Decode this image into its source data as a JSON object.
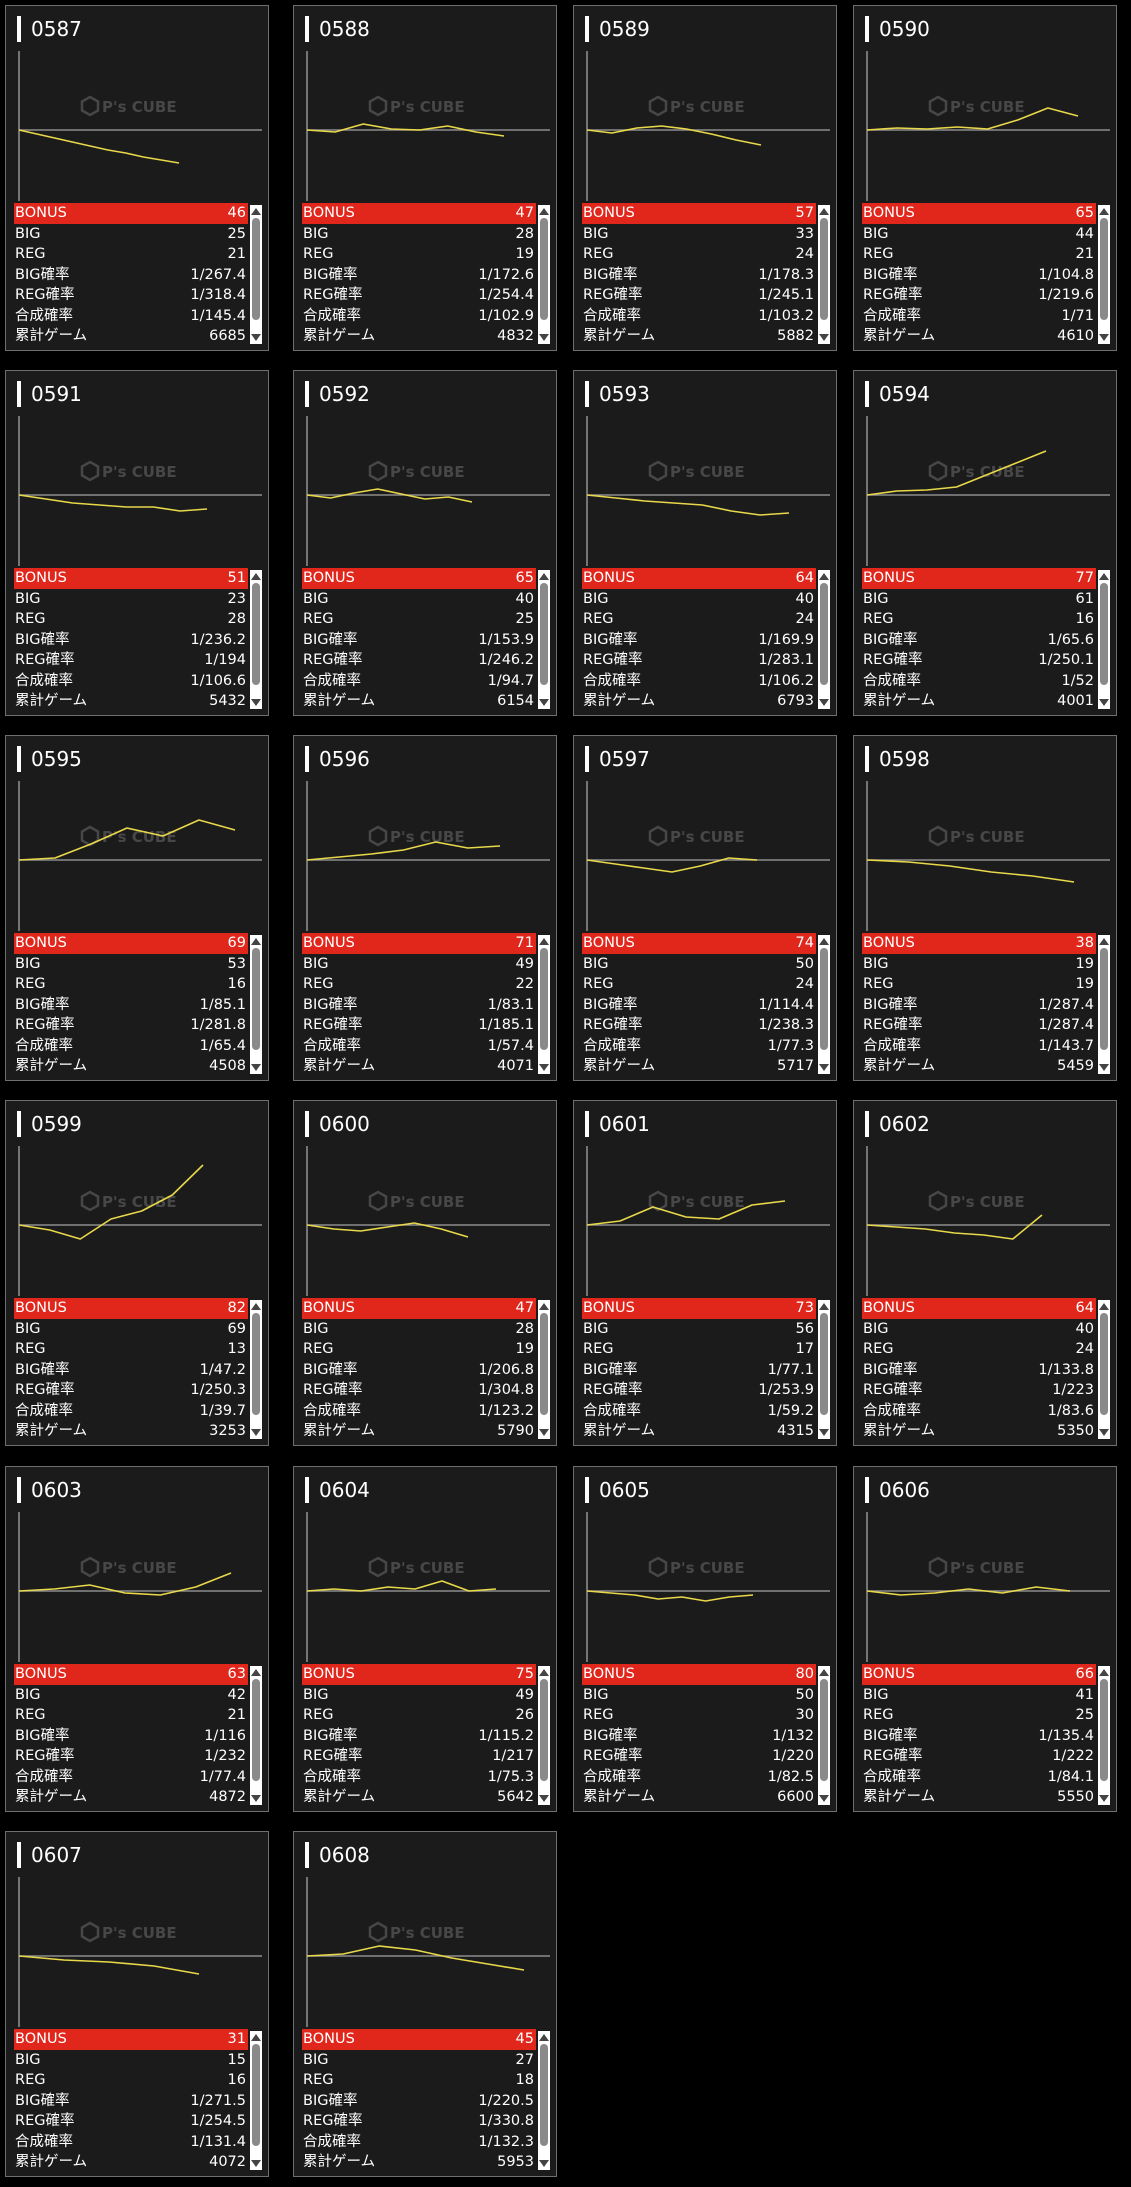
{
  "watermark": "P's CUBE",
  "labels": {
    "bonus": "BONUS",
    "big": "BIG",
    "reg": "REG",
    "big_rate": "BIG確率",
    "reg_rate": "REG確率",
    "total_rate": "合成確率",
    "games": "累計ゲーム"
  },
  "colors": {
    "bonus_bar": "#e1261c",
    "line": "#e8d84a",
    "card_bg": "#1b1b1b"
  },
  "machines": [
    {
      "id": "0587",
      "bonus": "46",
      "big": "25",
      "reg": "21",
      "big_rate": "1/267.4",
      "reg_rate": "1/318.4",
      "total_rate": "1/145.4",
      "games": "6685",
      "trend": [
        0,
        -4,
        -8,
        -12,
        -16,
        -20,
        -23,
        -27,
        -30,
        -33
      ]
    },
    {
      "id": "0588",
      "bonus": "47",
      "big": "28",
      "reg": "19",
      "big_rate": "1/172.6",
      "reg_rate": "1/254.4",
      "total_rate": "1/102.9",
      "games": "4832",
      "trend": [
        0,
        -2,
        6,
        1,
        0,
        4,
        -2,
        -6
      ]
    },
    {
      "id": "0589",
      "bonus": "57",
      "big": "33",
      "reg": "24",
      "big_rate": "1/178.3",
      "reg_rate": "1/245.1",
      "total_rate": "1/103.2",
      "games": "5882",
      "trend": [
        0,
        -3,
        2,
        4,
        1,
        -4,
        -10,
        -15
      ]
    },
    {
      "id": "0590",
      "bonus": "65",
      "big": "44",
      "reg": "21",
      "big_rate": "1/104.8",
      "reg_rate": "1/219.6",
      "total_rate": "1/71",
      "games": "4610",
      "trend": [
        0,
        2,
        1,
        3,
        1,
        10,
        22,
        14
      ]
    },
    {
      "id": "0591",
      "bonus": "51",
      "big": "23",
      "reg": "28",
      "big_rate": "1/236.2",
      "reg_rate": "1/194",
      "total_rate": "1/106.6",
      "games": "5432",
      "trend": [
        0,
        -4,
        -8,
        -10,
        -12,
        -12,
        -16,
        -14
      ]
    },
    {
      "id": "0592",
      "bonus": "65",
      "big": "40",
      "reg": "25",
      "big_rate": "1/153.9",
      "reg_rate": "1/246.2",
      "total_rate": "1/94.7",
      "games": "6154",
      "trend": [
        0,
        -3,
        2,
        6,
        1,
        -4,
        -2,
        -7
      ]
    },
    {
      "id": "0593",
      "bonus": "64",
      "big": "40",
      "reg": "24",
      "big_rate": "1/169.9",
      "reg_rate": "1/283.1",
      "total_rate": "1/106.2",
      "games": "6793",
      "trend": [
        0,
        -3,
        -6,
        -8,
        -10,
        -16,
        -20,
        -18
      ]
    },
    {
      "id": "0594",
      "bonus": "77",
      "big": "61",
      "reg": "16",
      "big_rate": "1/65.6",
      "reg_rate": "1/250.1",
      "total_rate": "1/52",
      "games": "4001",
      "trend": [
        0,
        4,
        5,
        8,
        20,
        32,
        44
      ]
    },
    {
      "id": "0595",
      "bonus": "69",
      "big": "53",
      "reg": "16",
      "big_rate": "1/85.1",
      "reg_rate": "1/281.8",
      "total_rate": "1/65.4",
      "games": "4508",
      "trend": [
        0,
        2,
        16,
        32,
        24,
        40,
        30
      ]
    },
    {
      "id": "0596",
      "bonus": "71",
      "big": "49",
      "reg": "22",
      "big_rate": "1/83.1",
      "reg_rate": "1/185.1",
      "total_rate": "1/57.4",
      "games": "4071",
      "trend": [
        0,
        3,
        6,
        10,
        18,
        12,
        14
      ]
    },
    {
      "id": "0597",
      "bonus": "74",
      "big": "50",
      "reg": "24",
      "big_rate": "1/114.4",
      "reg_rate": "1/238.3",
      "total_rate": "1/77.3",
      "games": "5717",
      "trend": [
        0,
        -4,
        -8,
        -12,
        -6,
        2,
        0
      ]
    },
    {
      "id": "0598",
      "bonus": "38",
      "big": "19",
      "reg": "19",
      "big_rate": "1/287.4",
      "reg_rate": "1/287.4",
      "total_rate": "1/143.7",
      "games": "5459",
      "trend": [
        0,
        -2,
        -6,
        -12,
        -16,
        -22
      ]
    },
    {
      "id": "0599",
      "bonus": "82",
      "big": "69",
      "reg": "13",
      "big_rate": "1/47.2",
      "reg_rate": "1/250.3",
      "total_rate": "1/39.7",
      "games": "3253",
      "trend": [
        0,
        -5,
        -14,
        6,
        14,
        30,
        60
      ]
    },
    {
      "id": "0600",
      "bonus": "47",
      "big": "28",
      "reg": "19",
      "big_rate": "1/206.8",
      "reg_rate": "1/304.8",
      "total_rate": "1/123.2",
      "games": "5790",
      "trend": [
        0,
        -4,
        -6,
        -2,
        2,
        -4,
        -12
      ]
    },
    {
      "id": "0601",
      "bonus": "73",
      "big": "56",
      "reg": "17",
      "big_rate": "1/77.1",
      "reg_rate": "1/253.9",
      "total_rate": "1/59.2",
      "games": "4315",
      "trend": [
        0,
        4,
        18,
        8,
        6,
        20,
        24
      ]
    },
    {
      "id": "0602",
      "bonus": "64",
      "big": "40",
      "reg": "24",
      "big_rate": "1/133.8",
      "reg_rate": "1/223",
      "total_rate": "1/83.6",
      "games": "5350",
      "trend": [
        0,
        -2,
        -4,
        -8,
        -10,
        -14,
        10
      ]
    },
    {
      "id": "0603",
      "bonus": "63",
      "big": "42",
      "reg": "21",
      "big_rate": "1/116",
      "reg_rate": "1/232",
      "total_rate": "1/77.4",
      "games": "4872",
      "trend": [
        0,
        2,
        6,
        -2,
        -4,
        4,
        18
      ]
    },
    {
      "id": "0604",
      "bonus": "75",
      "big": "49",
      "reg": "26",
      "big_rate": "1/115.2",
      "reg_rate": "1/217",
      "total_rate": "1/75.3",
      "games": "5642",
      "trend": [
        0,
        2,
        0,
        4,
        2,
        10,
        0,
        2
      ]
    },
    {
      "id": "0605",
      "bonus": "80",
      "big": "50",
      "reg": "30",
      "big_rate": "1/132",
      "reg_rate": "1/220",
      "total_rate": "1/82.5",
      "games": "6600",
      "trend": [
        0,
        -2,
        -4,
        -8,
        -6,
        -10,
        -6,
        -4
      ]
    },
    {
      "id": "0606",
      "bonus": "66",
      "big": "41",
      "reg": "25",
      "big_rate": "1/135.4",
      "reg_rate": "1/222",
      "total_rate": "1/84.1",
      "games": "5550",
      "trend": [
        0,
        -4,
        -2,
        2,
        -2,
        4,
        0
      ]
    },
    {
      "id": "0607",
      "bonus": "31",
      "big": "15",
      "reg": "16",
      "big_rate": "1/271.5",
      "reg_rate": "1/254.5",
      "total_rate": "1/131.4",
      "games": "4072",
      "trend": [
        0,
        -4,
        -6,
        -10,
        -18
      ]
    },
    {
      "id": "0608",
      "bonus": "45",
      "big": "27",
      "reg": "18",
      "big_rate": "1/220.5",
      "reg_rate": "1/330.8",
      "total_rate": "1/132.3",
      "games": "5953",
      "trend": [
        0,
        2,
        10,
        6,
        -2,
        -8,
        -14
      ]
    }
  ]
}
